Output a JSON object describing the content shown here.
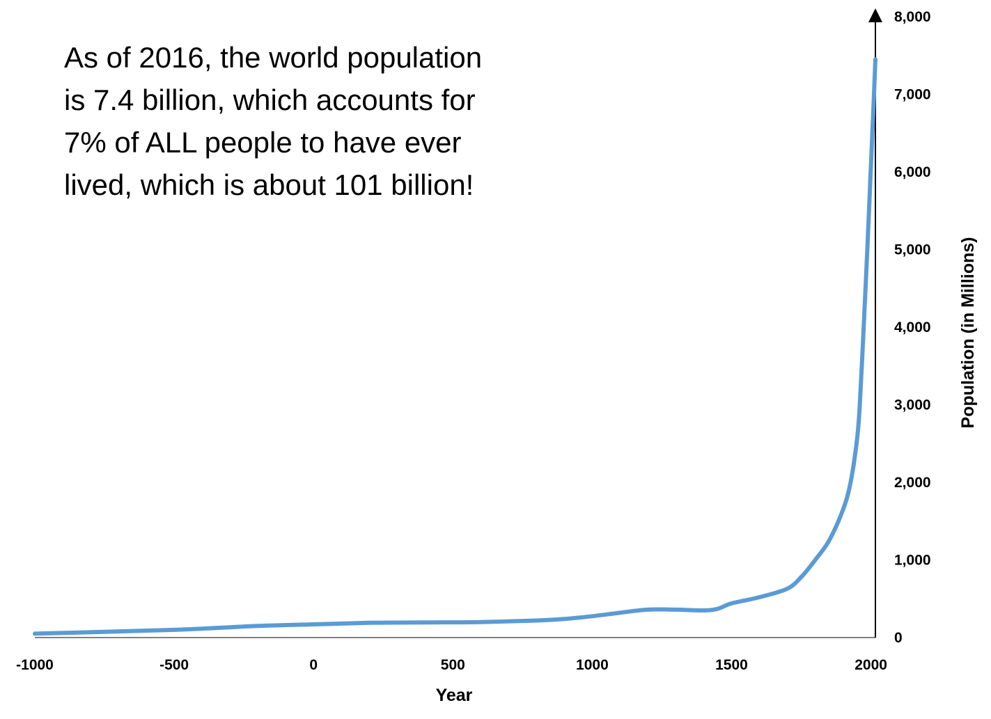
{
  "annotation": {
    "lines": [
      "As of 2016, the world population",
      "is 7.4 billion, which accounts for",
      "7% of ALL people to have ever",
      "lived, which is about 101 billion!"
    ]
  },
  "chart_data": {
    "type": "line",
    "xlabel": "Year",
    "ylabel": "Population (in Millions)",
    "xlim": [
      -1000,
      2016
    ],
    "ylim": [
      0,
      8000
    ],
    "x_ticks": [
      -1000,
      -500,
      0,
      500,
      1000,
      1500,
      2000
    ],
    "x_tick_labels": [
      "-1000",
      "-500",
      "0",
      "500",
      "1000",
      "1500",
      "2000"
    ],
    "y_ticks": [
      0,
      1000,
      2000,
      3000,
      4000,
      5000,
      6000,
      7000,
      8000
    ],
    "y_tick_labels": [
      "0",
      "1,000",
      "2,000",
      "3,000",
      "4,000",
      "5,000",
      "6,000",
      "7,000",
      "8,000"
    ],
    "y_axis_position": "right",
    "grid": false,
    "line_color": "#5b9bd5",
    "series": [
      {
        "x": [
          -1000,
          -500,
          -200,
          0,
          200,
          400,
          600,
          800,
          900,
          1000,
          1100,
          1200,
          1300,
          1400,
          1450,
          1500,
          1600,
          1700,
          1750,
          1800,
          1850,
          1900,
          1927,
          1950,
          1960,
          1974,
          1987,
          1999,
          2011,
          2016
        ],
        "y": [
          50,
          100,
          150,
          170,
          190,
          195,
          200,
          220,
          240,
          275,
          320,
          360,
          360,
          350,
          370,
          440,
          520,
          630,
          780,
          1000,
          1250,
          1650,
          2000,
          2550,
          3000,
          4000,
          5000,
          6000,
          7000,
          7450
        ]
      }
    ]
  }
}
